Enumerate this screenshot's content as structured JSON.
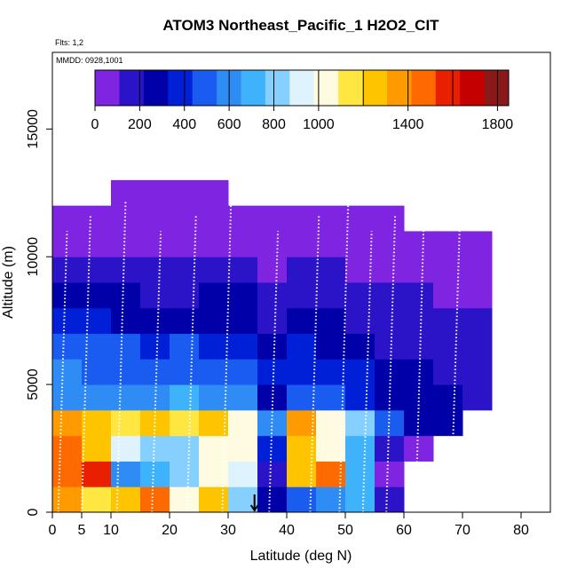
{
  "chart_data": {
    "type": "heatmap",
    "title": "ATOM3 Northeast_Pacific_1 H2O2_CIT",
    "flights_label": "Flts: 1,2",
    "dates_label": "MMDD: 0928,1001",
    "xlabel": "Latitude (deg N)",
    "ylabel": "Altitude (m)",
    "xlim": [
      0,
      85
    ],
    "ylim": [
      0,
      18000
    ],
    "x_ticks": [
      0,
      5,
      10,
      20,
      30,
      40,
      50,
      60,
      70,
      80
    ],
    "y_ticks": [
      0,
      5000,
      10000,
      15000
    ],
    "colorbar": {
      "min": 0,
      "max": 1850,
      "ticks": [
        0,
        200,
        400,
        600,
        800,
        1000,
        1400,
        1800
      ],
      "colors": [
        "#7f24e0",
        "#2b14c8",
        "#0000a8",
        "#0020d8",
        "#1a5cf0",
        "#2f8cf5",
        "#3fb2fc",
        "#86d0ff",
        "#dff3ff",
        "#fffbe0",
        "#ffe640",
        "#ffc400",
        "#ff9a00",
        "#ff6a00",
        "#e82000",
        "#c40000",
        "#8a1a1a"
      ]
    },
    "marker": {
      "latitude": 34.5,
      "label": "arrow"
    },
    "latitude_bins": [
      0,
      5,
      10,
      15,
      20,
      25,
      30,
      35,
      40,
      45,
      50,
      55,
      60,
      65,
      70
    ],
    "altitude_bins": [
      0,
      1000,
      2000,
      3000,
      4000,
      5000,
      6000,
      7000,
      8000,
      9000,
      10000,
      11000,
      12000
    ],
    "values": [
      [
        1350,
        1150,
        1250,
        1500,
        1050,
        1300,
        800,
        250,
        500,
        600,
        750,
        150,
        null,
        null,
        null
      ],
      [
        1450,
        1550,
        650,
        750,
        850,
        1050,
        950,
        200,
        1200,
        1500,
        700,
        100,
        null,
        null,
        null
      ],
      [
        1450,
        1250,
        950,
        850,
        850,
        1050,
        1050,
        350,
        1250,
        1050,
        750,
        150,
        100,
        null,
        null
      ],
      [
        1400,
        1300,
        1150,
        1250,
        1150,
        1200,
        1000,
        550,
        1350,
        1050,
        850,
        450,
        300,
        250,
        null
      ],
      [
        650,
        650,
        550,
        600,
        700,
        650,
        550,
        300,
        500,
        450,
        400,
        250,
        250,
        250,
        200
      ],
      [
        550,
        500,
        500,
        450,
        500,
        450,
        450,
        350,
        400,
        350,
        350,
        250,
        250,
        200,
        200
      ],
      [
        500,
        450,
        450,
        400,
        450,
        400,
        400,
        300,
        350,
        300,
        250,
        200,
        200,
        150,
        150
      ],
      [
        350,
        350,
        300,
        300,
        250,
        300,
        300,
        200,
        250,
        250,
        200,
        150,
        150,
        150,
        150
      ],
      [
        250,
        250,
        250,
        200,
        200,
        250,
        250,
        150,
        200,
        200,
        150,
        150,
        150,
        100,
        100
      ],
      [
        150,
        150,
        150,
        150,
        150,
        150,
        150,
        100,
        150,
        150,
        100,
        100,
        100,
        50,
        50
      ],
      [
        100,
        100,
        100,
        100,
        100,
        100,
        100,
        50,
        100,
        100,
        50,
        50,
        50,
        50,
        50
      ],
      [
        50,
        50,
        50,
        50,
        50,
        50,
        50,
        0,
        50,
        50,
        0,
        0,
        null,
        null,
        null
      ],
      [
        null,
        null,
        50,
        50,
        0,
        0,
        null,
        null,
        null,
        null,
        null,
        null,
        null,
        null,
        null
      ]
    ]
  }
}
